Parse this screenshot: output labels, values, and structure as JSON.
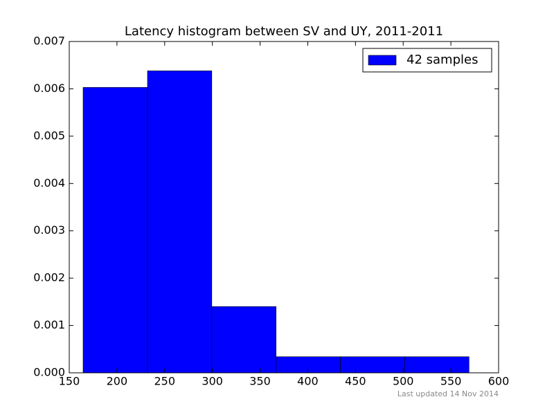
{
  "chart_data": {
    "type": "histogram",
    "title": "Latency histogram between SV and UY, 2011-2011",
    "bins": [
      164.5,
      232,
      299.4,
      366.8,
      434.2,
      501.6,
      569
    ],
    "series": [
      {
        "name": "42 samples",
        "color": "#0000ff",
        "values": [
          0.00603,
          0.00638,
          0.0014,
          0.00034,
          0.00034,
          0.00034
        ]
      }
    ],
    "xlim": [
      150,
      600
    ],
    "xticks": [
      150,
      200,
      250,
      300,
      350,
      400,
      450,
      500,
      550,
      600
    ],
    "ylim": [
      0,
      0.007
    ],
    "yticks": [
      {
        "value": 0,
        "label": "0.000"
      },
      {
        "value": 0.001,
        "label": "0.001"
      },
      {
        "value": 0.002,
        "label": "0.002"
      },
      {
        "value": 0.003,
        "label": "0.003"
      },
      {
        "value": 0.004,
        "label": "0.004"
      },
      {
        "value": 0.005,
        "label": "0.005"
      },
      {
        "value": 0.006,
        "label": "0.006"
      },
      {
        "value": 0.007,
        "label": "0.007"
      }
    ],
    "legend": "upper right",
    "footnote": "Last updated 14 Nov 2014"
  }
}
